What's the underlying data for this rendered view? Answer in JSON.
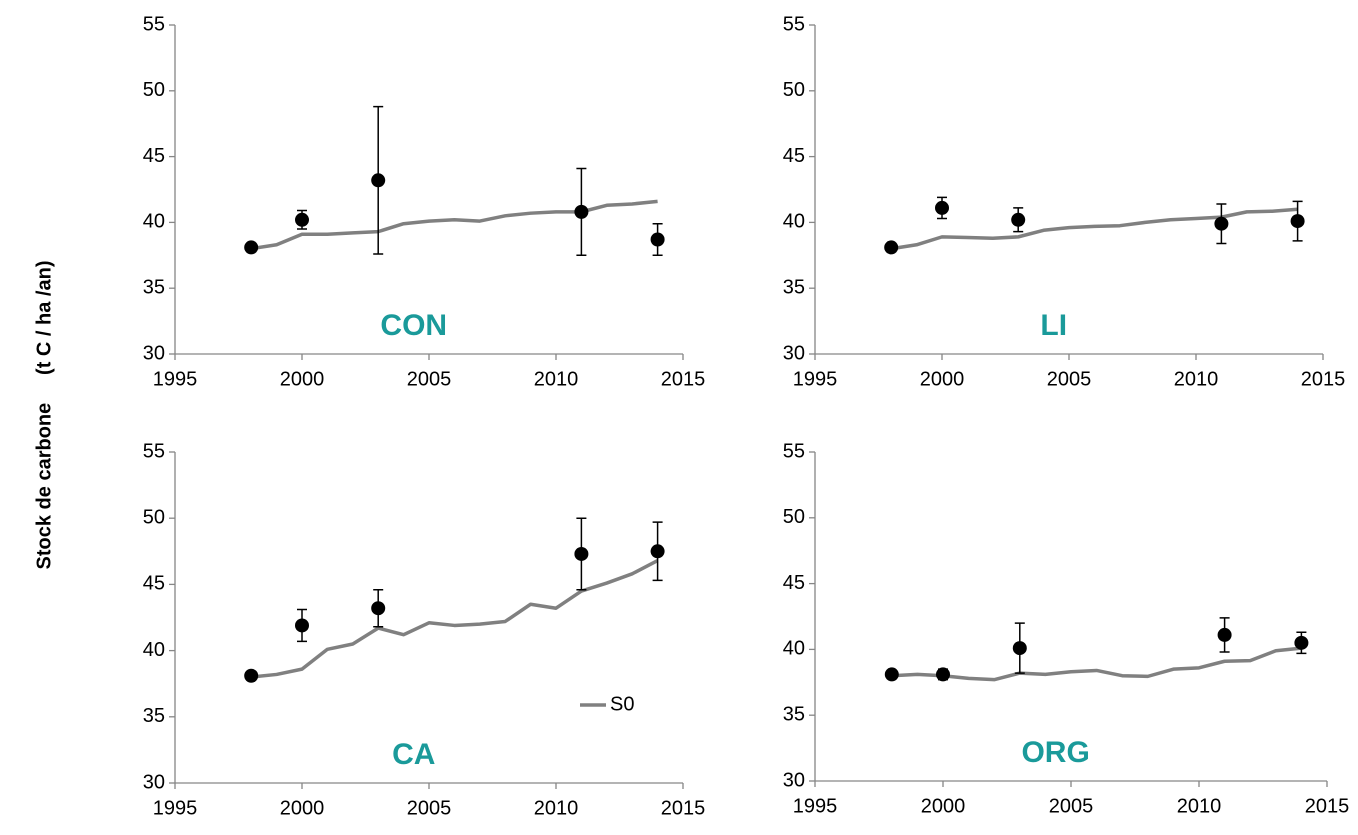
{
  "ylabel": "Stock de carbone     (t C / ha /an)",
  "chart_data": [
    {
      "type": "line",
      "label": "CON",
      "xlim": [
        1995,
        2015
      ],
      "xticks": [
        1995,
        2000,
        2005,
        2010,
        2015
      ],
      "ylim": [
        30,
        55
      ],
      "yticks": [
        30,
        35,
        40,
        45,
        50,
        55
      ],
      "series": [
        {
          "color": "#808080",
          "x": [
            1998,
            1999,
            2000,
            2001,
            2002,
            2003,
            2004,
            2005,
            2006,
            2007,
            2008,
            2009,
            2010,
            2011,
            2012,
            2013,
            2014
          ],
          "values": [
            38.0,
            38.3,
            39.1,
            39.1,
            39.2,
            39.3,
            39.9,
            40.1,
            40.2,
            40.1,
            40.5,
            40.7,
            40.8,
            40.8,
            41.3,
            41.4,
            41.6
          ]
        },
        {
          "color": "#000000",
          "x": [
            1998,
            2000,
            2003,
            2011,
            2014
          ],
          "values": [
            38.1,
            40.2,
            43.2,
            40.8,
            38.7
          ],
          "errors": [
            0.3,
            0.7,
            5.6,
            3.3,
            1.2
          ]
        }
      ]
    },
    {
      "type": "line",
      "label": "LI",
      "xlim": [
        1995,
        2015
      ],
      "xticks": [
        1995,
        2000,
        2005,
        2010,
        2015
      ],
      "ylim": [
        30,
        55
      ],
      "yticks": [
        30,
        35,
        40,
        45,
        50,
        55
      ],
      "series": [
        {
          "color": "#808080",
          "x": [
            1998,
            1999,
            2000,
            2001,
            2002,
            2003,
            2004,
            2005,
            2006,
            2007,
            2008,
            2009,
            2010,
            2011,
            2012,
            2013,
            2014
          ],
          "values": [
            38.0,
            38.3,
            38.9,
            38.85,
            38.8,
            38.9,
            39.4,
            39.6,
            39.7,
            39.75,
            40.0,
            40.2,
            40.3,
            40.4,
            40.8,
            40.85,
            41.0
          ]
        },
        {
          "color": "#000000",
          "x": [
            1998,
            2000,
            2003,
            2011,
            2014
          ],
          "values": [
            38.1,
            41.1,
            40.2,
            39.9,
            40.1
          ],
          "errors": [
            0.3,
            0.8,
            0.9,
            1.5,
            1.5
          ]
        }
      ]
    },
    {
      "type": "line",
      "label": "CA",
      "xlim": [
        1995,
        2015
      ],
      "xticks": [
        1995,
        2000,
        2005,
        2010,
        2015
      ],
      "ylim": [
        30,
        55
      ],
      "yticks": [
        30,
        35,
        40,
        45,
        50,
        55
      ],
      "legend": "lower right",
      "series": [
        {
          "name": "S0",
          "color": "#808080",
          "x": [
            1998,
            1999,
            2000,
            2001,
            2002,
            2003,
            2004,
            2005,
            2006,
            2007,
            2008,
            2009,
            2010,
            2011,
            2012,
            2013,
            2014
          ],
          "values": [
            38.0,
            38.2,
            38.6,
            40.1,
            40.5,
            41.7,
            41.2,
            42.1,
            41.9,
            42.0,
            42.2,
            43.5,
            43.2,
            44.5,
            45.1,
            45.8,
            46.8
          ]
        },
        {
          "color": "#000000",
          "x": [
            1998,
            2000,
            2003,
            2011,
            2014
          ],
          "values": [
            38.1,
            41.9,
            43.2,
            47.3,
            47.5
          ],
          "errors": [
            0.3,
            1.2,
            1.4,
            2.7,
            2.2
          ]
        }
      ]
    },
    {
      "type": "line",
      "label": "ORG",
      "xlim": [
        1995,
        2015
      ],
      "xticks": [
        1995,
        2000,
        2005,
        2010,
        2015
      ],
      "ylim": [
        30,
        55
      ],
      "yticks": [
        30,
        35,
        40,
        45,
        50,
        55
      ],
      "series": [
        {
          "color": "#808080",
          "x": [
            1998,
            1999,
            2000,
            2001,
            2002,
            2003,
            2004,
            2005,
            2006,
            2007,
            2008,
            2009,
            2010,
            2011,
            2012,
            2013,
            2014
          ],
          "values": [
            38.0,
            38.1,
            38.0,
            37.8,
            37.7,
            38.2,
            38.1,
            38.3,
            38.4,
            38.0,
            37.95,
            38.5,
            38.6,
            39.1,
            39.15,
            39.9,
            40.1
          ]
        },
        {
          "color": "#000000",
          "x": [
            1998,
            2000,
            2003,
            2011,
            2014
          ],
          "values": [
            38.1,
            38.1,
            40.1,
            41.1,
            40.5
          ],
          "errors": [
            0.3,
            0.4,
            1.9,
            1.3,
            0.8
          ]
        }
      ]
    }
  ]
}
